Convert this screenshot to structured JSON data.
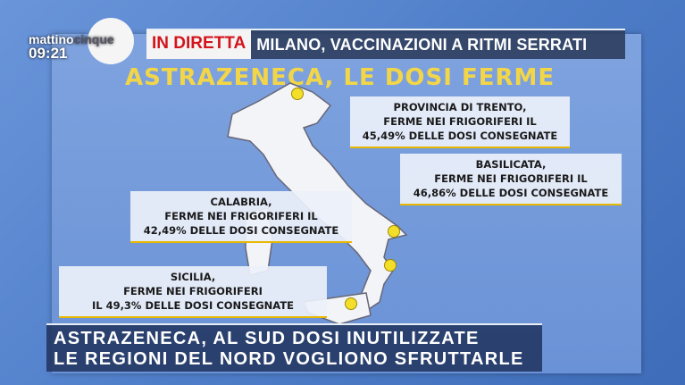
{
  "logo": {
    "brand_part1": "mattino",
    "brand_part2": "cinque",
    "time": "09:21"
  },
  "ticker": {
    "live_label": "IN DIRETTA",
    "headline": "MILANO, VACCINAZIONI A RITMI SERRATI"
  },
  "graphic": {
    "title": "ASTRAZENECA, LE DOSI FERME",
    "labels": [
      {
        "lines": [
          "PROVINCIA DI TRENTO,",
          "FERME NEI FRIGORIFERI IL",
          "45,49% DELLE DOSI CONSEGNATE"
        ]
      },
      {
        "lines": [
          "BASILICATA,",
          "FERME NEI FRIGORIFERI IL",
          "46,86% DELLE DOSI CONSEGNATE"
        ]
      },
      {
        "lines": [
          "CALABRIA,",
          "FERME NEI FRIGORIFERI IL",
          "42,49% DELLE DOSI CONSEGNATE"
        ]
      },
      {
        "lines": [
          "SICILIA,",
          "FERME NEI FRIGORIFERI",
          "IL 49,3% DELLE DOSI CONSEGNATE"
        ]
      }
    ],
    "accent": "#f3df2a"
  },
  "caption": {
    "line1": "ASTRAZENECA, AL SUD DOSI INUTILIZZATE",
    "line2": "LE REGIONI DEL NORD VOGLIONO SFRUTTARLE"
  }
}
